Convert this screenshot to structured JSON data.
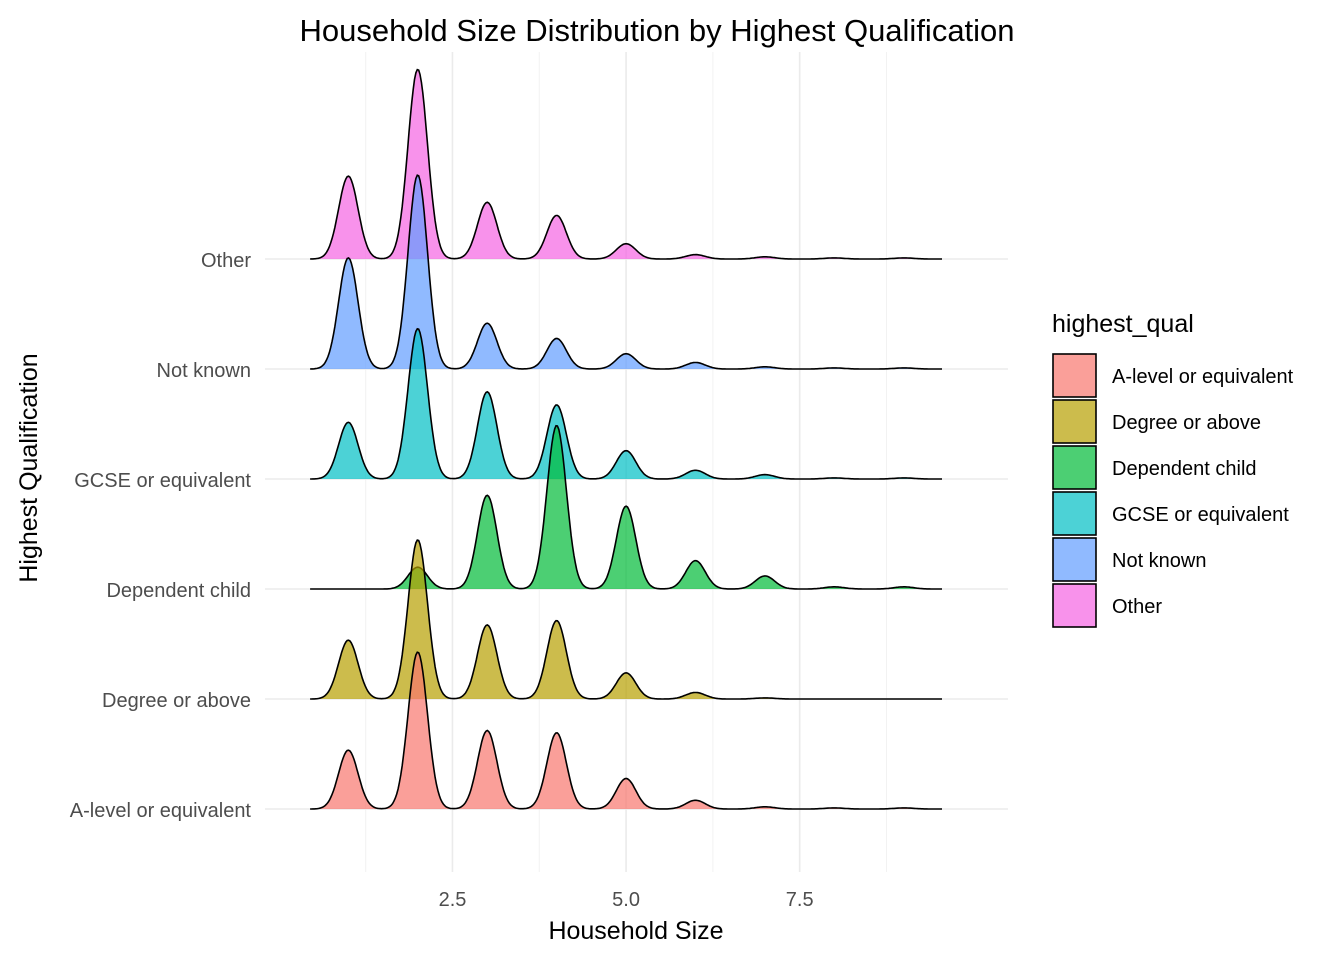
{
  "chart_data": {
    "type": "ridgeline density",
    "title": "Household Size Distribution by Highest Qualification",
    "xlabel": "Household Size",
    "ylabel": "Highest Qualification",
    "x_ticks": [
      2.5,
      5.0,
      7.5
    ],
    "x_tick_labels": [
      "2.5",
      "5.0",
      "7.5"
    ],
    "xlim": [
      -0.2,
      10.5
    ],
    "grid": true,
    "legend_title": "highest_qual",
    "legend_position": "right",
    "categories": [
      "A-level or equivalent",
      "Degree or above",
      "Dependent child",
      "GCSE or equivalent",
      "Not known",
      "Other"
    ],
    "series": [
      {
        "name": "A-level or equivalent",
        "color": "#F8766D",
        "x": [
          1,
          2,
          3,
          4,
          5,
          6,
          7,
          8,
          9
        ],
        "density": [
          0.27,
          0.72,
          0.36,
          0.35,
          0.14,
          0.04,
          0.01,
          0.005,
          0.005
        ]
      },
      {
        "name": "Degree or above",
        "color": "#B79F00",
        "x": [
          1,
          2,
          3,
          4,
          5,
          6,
          7,
          8,
          9
        ],
        "density": [
          0.27,
          0.73,
          0.34,
          0.36,
          0.12,
          0.03,
          0.005,
          0,
          0
        ]
      },
      {
        "name": "Dependent child",
        "color": "#00BA38",
        "x": [
          1,
          2,
          3,
          4,
          5,
          6,
          7,
          8,
          9
        ],
        "density": [
          0.0,
          0.1,
          0.43,
          0.75,
          0.38,
          0.13,
          0.06,
          0.01,
          0.01
        ]
      },
      {
        "name": "GCSE or equivalent",
        "color": "#00BFC4",
        "x": [
          1,
          2,
          3,
          4,
          5,
          6,
          7,
          8,
          9
        ],
        "density": [
          0.26,
          0.69,
          0.4,
          0.34,
          0.13,
          0.04,
          0.02,
          0.005,
          0.005
        ]
      },
      {
        "name": "Not known",
        "color": "#619CFF",
        "x": [
          1,
          2,
          3,
          4,
          5,
          6,
          7,
          8,
          9
        ],
        "density": [
          0.51,
          0.89,
          0.21,
          0.14,
          0.07,
          0.03,
          0.01,
          0.005,
          0.005
        ]
      },
      {
        "name": "Other",
        "color": "#F564E3",
        "x": [
          1,
          2,
          3,
          4,
          5,
          6,
          7,
          8,
          9
        ],
        "density": [
          0.38,
          0.87,
          0.26,
          0.2,
          0.07,
          0.02,
          0.01,
          0.005,
          0.005
        ]
      }
    ]
  }
}
